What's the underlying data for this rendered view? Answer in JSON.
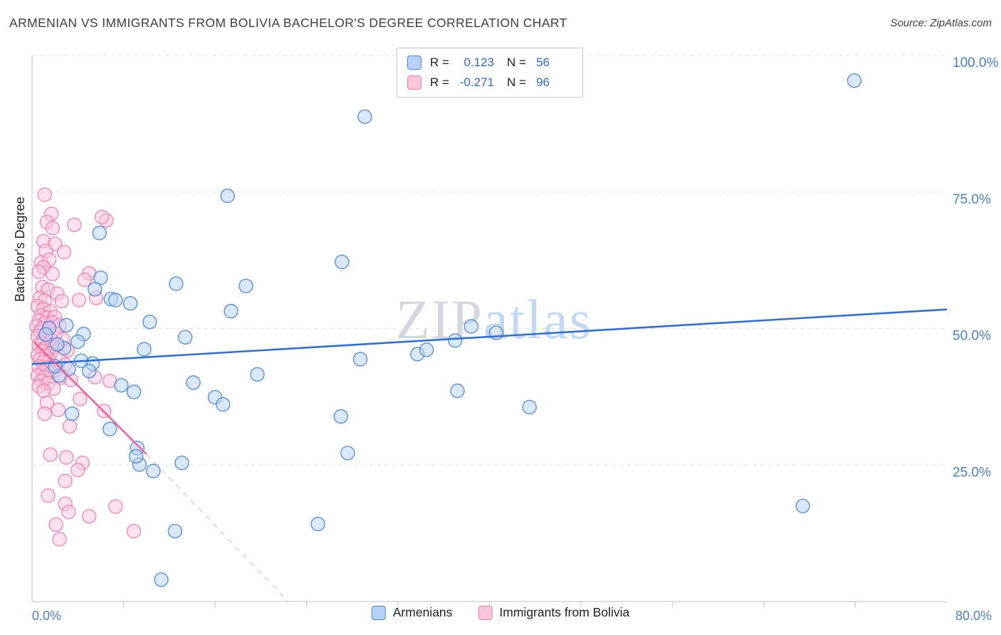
{
  "header": {
    "title": "ARMENIAN VS IMMIGRANTS FROM BOLIVIA BACHELOR'S DEGREE CORRELATION CHART",
    "source": "Source: ZipAtlas.com"
  },
  "legend_box": {
    "rows": [
      {
        "series": "Armenians",
        "r_label": "R =",
        "r_value": "0.123",
        "n_label": "N =",
        "n_value": "56"
      },
      {
        "series": "Immigrants from Bolivia",
        "r_label": "R =",
        "r_value": "-0.271",
        "n_label": "N =",
        "n_value": "96"
      }
    ]
  },
  "bottom_legend": {
    "items": [
      {
        "label": "Armenians"
      },
      {
        "label": "Immigrants from Bolivia"
      }
    ]
  },
  "watermark": {
    "part1": "ZIP",
    "part2": "atlas"
  },
  "axes": {
    "ylabel": "Bachelor's Degree",
    "x_min_label": "0.0%",
    "x_max_label": "80.0%",
    "label_color": "#4a80d2"
  },
  "chart_data": {
    "type": "scatter",
    "title": "ARMENIAN VS IMMIGRANTS FROM BOLIVIA BACHELOR'S DEGREE CORRELATION CHART",
    "xlabel": "",
    "ylabel": "Bachelor's Degree",
    "xlim": [
      0,
      80
    ],
    "ylim": [
      0,
      100
    ],
    "grid": true,
    "legend_position": "top-center",
    "y_ticks": [
      {
        "value": 25,
        "label": "25.0%"
      },
      {
        "value": 50,
        "label": "50.0%"
      },
      {
        "value": 75,
        "label": "75.0%"
      },
      {
        "value": 100,
        "label": "100.0%"
      }
    ],
    "x_minor_ticks": [
      8,
      16,
      24,
      32,
      40,
      48,
      56,
      64,
      72
    ],
    "series": [
      {
        "name": "Armenians",
        "R": 0.123,
        "N": 56,
        "color": "#b6d2f9",
        "edge": "#4a86d8",
        "points": [
          [
            71.9,
            95.4
          ],
          [
            29.1,
            88.8
          ],
          [
            17.1,
            74.3
          ],
          [
            5.9,
            67.5
          ],
          [
            6.0,
            59.3
          ],
          [
            5.5,
            57.2
          ],
          [
            6.9,
            55.4
          ],
          [
            7.3,
            55.2
          ],
          [
            12.6,
            58.2
          ],
          [
            18.7,
            57.8
          ],
          [
            27.1,
            62.2
          ],
          [
            8.6,
            54.6
          ],
          [
            10.3,
            51.2
          ],
          [
            4.5,
            49.0
          ],
          [
            17.4,
            53.2
          ],
          [
            38.4,
            50.4
          ],
          [
            40.6,
            49.2
          ],
          [
            37.0,
            47.8
          ],
          [
            33.7,
            45.3
          ],
          [
            34.5,
            46.1
          ],
          [
            28.7,
            44.4
          ],
          [
            13.4,
            48.4
          ],
          [
            9.8,
            46.2
          ],
          [
            5.3,
            43.6
          ],
          [
            4.3,
            44.1
          ],
          [
            3.2,
            42.6
          ],
          [
            2.4,
            41.4
          ],
          [
            19.7,
            41.6
          ],
          [
            14.1,
            40.1
          ],
          [
            7.8,
            39.6
          ],
          [
            8.9,
            38.4
          ],
          [
            16.0,
            37.4
          ],
          [
            16.7,
            36.1
          ],
          [
            37.2,
            38.6
          ],
          [
            43.5,
            35.6
          ],
          [
            27.0,
            33.9
          ],
          [
            3.5,
            34.4
          ],
          [
            6.8,
            31.6
          ],
          [
            9.2,
            28.1
          ],
          [
            27.6,
            27.2
          ],
          [
            13.1,
            25.4
          ],
          [
            9.4,
            25.1
          ],
          [
            10.6,
            23.9
          ],
          [
            9.1,
            26.6
          ],
          [
            25.0,
            14.2
          ],
          [
            12.5,
            12.9
          ],
          [
            67.4,
            17.5
          ],
          [
            11.3,
            4.0
          ],
          [
            2.0,
            43.1
          ],
          [
            2.8,
            46.4
          ],
          [
            4.0,
            47.6
          ],
          [
            1.5,
            50.1
          ],
          [
            1.2,
            48.9
          ],
          [
            3.0,
            50.6
          ],
          [
            2.2,
            47.1
          ],
          [
            5.0,
            42.2
          ]
        ]
      },
      {
        "name": "Immigrants from Bolivia",
        "R": -0.271,
        "N": 96,
        "color": "#fac6da",
        "edge": "#ee7fae",
        "points": [
          [
            1.1,
            74.5
          ],
          [
            1.7,
            71.0
          ],
          [
            1.3,
            69.5
          ],
          [
            3.7,
            69.0
          ],
          [
            6.5,
            69.8
          ],
          [
            1.0,
            66.0
          ],
          [
            2.0,
            65.5
          ],
          [
            1.2,
            64.2
          ],
          [
            0.8,
            62.1
          ],
          [
            1.5,
            62.6
          ],
          [
            2.8,
            64.0
          ],
          [
            1.0,
            61.2
          ],
          [
            0.6,
            60.4
          ],
          [
            1.8,
            60.0
          ],
          [
            5.0,
            60.1
          ],
          [
            4.6,
            58.9
          ],
          [
            0.9,
            57.6
          ],
          [
            1.4,
            57.1
          ],
          [
            2.2,
            56.4
          ],
          [
            0.7,
            55.6
          ],
          [
            1.1,
            55.1
          ],
          [
            2.6,
            55.0
          ],
          [
            4.1,
            55.2
          ],
          [
            5.6,
            55.6
          ],
          [
            0.5,
            54.1
          ],
          [
            1.0,
            53.6
          ],
          [
            1.6,
            53.1
          ],
          [
            0.8,
            52.4
          ],
          [
            1.3,
            52.0
          ],
          [
            2.0,
            52.1
          ],
          [
            0.6,
            51.4
          ],
          [
            1.1,
            51.0
          ],
          [
            1.8,
            51.1
          ],
          [
            2.4,
            50.6
          ],
          [
            0.4,
            50.4
          ],
          [
            0.9,
            50.0
          ],
          [
            1.5,
            49.9
          ],
          [
            0.7,
            49.4
          ],
          [
            1.2,
            49.0
          ],
          [
            2.1,
            49.1
          ],
          [
            0.5,
            48.6
          ],
          [
            1.0,
            48.1
          ],
          [
            1.7,
            47.9
          ],
          [
            2.7,
            48.0
          ],
          [
            0.8,
            47.4
          ],
          [
            1.4,
            47.0
          ],
          [
            0.6,
            46.9
          ],
          [
            1.1,
            46.4
          ],
          [
            2.0,
            46.6
          ],
          [
            3.1,
            46.0
          ],
          [
            0.9,
            45.9
          ],
          [
            1.6,
            45.4
          ],
          [
            0.5,
            45.1
          ],
          [
            1.2,
            45.0
          ],
          [
            2.4,
            44.9
          ],
          [
            0.7,
            44.4
          ],
          [
            1.5,
            44.1
          ],
          [
            1.0,
            43.9
          ],
          [
            2.9,
            43.4
          ],
          [
            0.6,
            43.0
          ],
          [
            1.3,
            42.9
          ],
          [
            2.1,
            42.4
          ],
          [
            0.9,
            42.1
          ],
          [
            1.7,
            41.9
          ],
          [
            0.5,
            41.4
          ],
          [
            1.1,
            41.1
          ],
          [
            2.5,
            41.0
          ],
          [
            3.4,
            40.6
          ],
          [
            0.8,
            40.4
          ],
          [
            1.4,
            40.0
          ],
          [
            5.5,
            41.1
          ],
          [
            6.8,
            40.4
          ],
          [
            0.6,
            39.4
          ],
          [
            1.9,
            39.0
          ],
          [
            1.0,
            38.6
          ],
          [
            4.2,
            37.1
          ],
          [
            1.3,
            36.4
          ],
          [
            2.3,
            35.1
          ],
          [
            1.1,
            34.4
          ],
          [
            6.3,
            34.9
          ],
          [
            3.3,
            32.1
          ],
          [
            1.6,
            26.9
          ],
          [
            3.0,
            26.4
          ],
          [
            4.4,
            25.4
          ],
          [
            4.0,
            24.1
          ],
          [
            2.9,
            22.1
          ],
          [
            1.4,
            19.4
          ],
          [
            2.9,
            17.9
          ],
          [
            3.2,
            16.4
          ],
          [
            5.0,
            15.6
          ],
          [
            2.1,
            14.1
          ],
          [
            7.3,
            17.4
          ],
          [
            2.4,
            11.4
          ],
          [
            8.9,
            12.9
          ],
          [
            6.1,
            70.4
          ],
          [
            1.8,
            68.4
          ]
        ]
      }
    ],
    "trend_lines": [
      {
        "series": "Armenians",
        "x1": 0,
        "y1": 43.5,
        "x2": 80,
        "y2": 53.5,
        "style": "solid",
        "color": "#2f6fd6",
        "width": 2.6
      },
      {
        "series": "Immigrants from Bolivia",
        "x1": 0.2,
        "y1": 47.5,
        "x2": 10,
        "y2": 27.0,
        "style": "solid",
        "color": "#e8679f",
        "width": 2.6
      },
      {
        "series": "Immigrants from Bolivia",
        "x1": 10,
        "y1": 27.0,
        "x2": 22.4,
        "y2": 0,
        "style": "dashed",
        "color": "#e9c4d6",
        "width": 1.4
      }
    ],
    "grid_color": "#dfe3e8",
    "axis_color": "#c9ccd2"
  }
}
